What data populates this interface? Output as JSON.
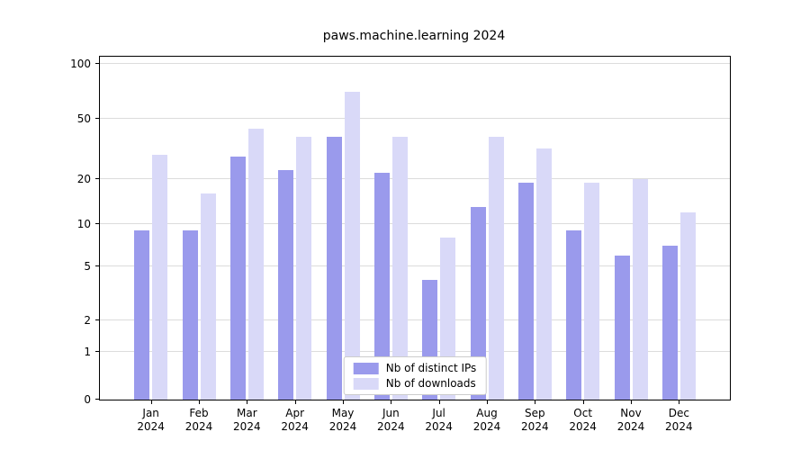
{
  "chart_data": {
    "type": "bar",
    "title": "paws.machine.learning 2024",
    "categories": [
      "Jan 2024",
      "Feb 2024",
      "Mar 2024",
      "Apr 2024",
      "May 2024",
      "Jun 2024",
      "Jul 2024",
      "Aug 2024",
      "Sep 2024",
      "Oct 2024",
      "Nov 2024",
      "Dec 2024"
    ],
    "series": [
      {
        "name": "Nb of distinct IPs",
        "color": "#9a9aec",
        "values": [
          9,
          9,
          28,
          23,
          38,
          22,
          4,
          13,
          19,
          9,
          6,
          7
        ]
      },
      {
        "name": "Nb of downloads",
        "color": "#d9d9f8",
        "values": [
          29,
          16,
          43,
          38,
          70,
          38,
          8,
          38,
          32,
          19,
          20,
          12
        ]
      }
    ],
    "yscale": "symlog",
    "yticks": [
      0,
      1,
      2,
      5,
      10,
      20,
      50,
      100
    ],
    "ylim": [
      0,
      120
    ],
    "grid": true,
    "legend_position": "lower center"
  }
}
